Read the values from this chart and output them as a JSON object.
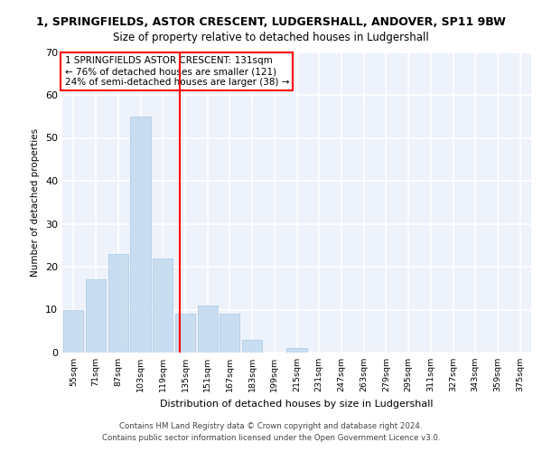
{
  "title_line1": "1, SPRINGFIELDS, ASTOR CRESCENT, LUDGERSHALL, ANDOVER, SP11 9BW",
  "title_line2": "Size of property relative to detached houses in Ludgershall",
  "xlabel": "Distribution of detached houses by size in Ludgershall",
  "ylabel": "Number of detached properties",
  "categories": [
    "55sqm",
    "71sqm",
    "87sqm",
    "103sqm",
    "119sqm",
    "135sqm",
    "151sqm",
    "167sqm",
    "183sqm",
    "199sqm",
    "215sqm",
    "231sqm",
    "247sqm",
    "263sqm",
    "279sqm",
    "295sqm",
    "311sqm",
    "327sqm",
    "343sqm",
    "359sqm",
    "375sqm"
  ],
  "values": [
    10,
    17,
    23,
    55,
    22,
    9,
    11,
    9,
    3,
    0,
    1,
    0,
    0,
    0,
    0,
    0,
    0,
    0,
    0,
    0,
    0
  ],
  "bar_color": "#c9ddf0",
  "bar_edge_color": "#a8c8e8",
  "red_line_x": 4.75,
  "annotation_box_text": "1 SPRINGFIELDS ASTOR CRESCENT: 131sqm\n← 76% of detached houses are smaller (121)\n24% of semi-detached houses are larger (38) →",
  "ylim": [
    0,
    70
  ],
  "yticks": [
    0,
    10,
    20,
    30,
    40,
    50,
    60,
    70
  ],
  "background_color": "#eef2fa",
  "grid_color": "#ffffff",
  "footer_line1": "Contains HM Land Registry data © Crown copyright and database right 2024.",
  "footer_line2": "Contains public sector information licensed under the Open Government Licence v3.0."
}
